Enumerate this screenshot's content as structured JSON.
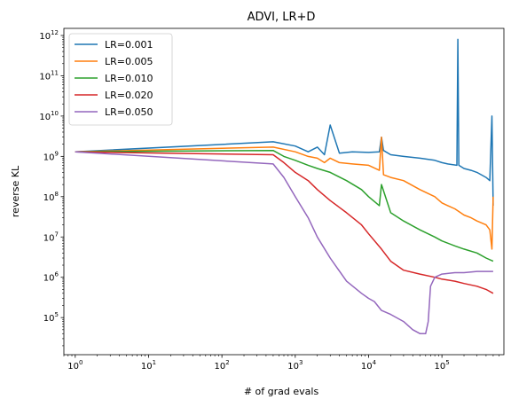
{
  "chart_data": {
    "type": "line",
    "title": "ADVI, LR+D",
    "xlabel": "# of grad evals",
    "ylabel": "reverse KL",
    "xscale": "log",
    "yscale": "log",
    "xlim": [
      0.7,
      700000
    ],
    "ylim": [
      12000,
      1500000000000
    ],
    "xticks": [
      {
        "base": "10",
        "exp": "0",
        "value": 1
      },
      {
        "base": "10",
        "exp": "1",
        "value": 10
      },
      {
        "base": "10",
        "exp": "2",
        "value": 100
      },
      {
        "base": "10",
        "exp": "3",
        "value": 1000
      },
      {
        "base": "10",
        "exp": "4",
        "value": 10000
      },
      {
        "base": "10",
        "exp": "5",
        "value": 100000
      }
    ],
    "yticks": [
      {
        "base": "10",
        "exp": "5",
        "value": 100000
      },
      {
        "base": "10",
        "exp": "6",
        "value": 1000000
      },
      {
        "base": "10",
        "exp": "7",
        "value": 10000000
      },
      {
        "base": "10",
        "exp": "8",
        "value": 100000000
      },
      {
        "base": "10",
        "exp": "9",
        "value": 1000000000
      },
      {
        "base": "10",
        "exp": "10",
        "value": 10000000000
      },
      {
        "base": "10",
        "exp": "11",
        "value": 100000000000
      },
      {
        "base": "10",
        "exp": "12",
        "value": 1000000000000
      }
    ],
    "grid": false,
    "legend_position": "upper-left",
    "series": [
      {
        "name": "LR=0.001",
        "color": "#1f77b4",
        "x": [
          1,
          500,
          1000,
          1500,
          2000,
          2500,
          3000,
          4000,
          6000,
          10000,
          14000,
          15000,
          16000,
          20000,
          30000,
          50000,
          80000,
          100000,
          120000,
          160000,
          165000,
          170000,
          200000,
          250000,
          300000,
          400000,
          450000,
          480000,
          500000
        ],
        "y": [
          1300000000,
          2300000000,
          1800000000,
          1300000000,
          1700000000,
          1100000000,
          6000000000,
          1200000000,
          1300000000,
          1250000000,
          1300000000,
          3000000000,
          1400000000,
          1100000000,
          1000000000,
          900000000,
          800000000,
          700000000,
          650000000,
          600000000,
          800000000000,
          600000000,
          500000000,
          450000000,
          400000000,
          300000000,
          250000000,
          10000000000,
          60000000
        ]
      },
      {
        "name": "LR=0.005",
        "color": "#ff7f0e",
        "x": [
          1,
          500,
          1000,
          1500,
          2000,
          2500,
          3000,
          4000,
          6000,
          10000,
          14000,
          15000,
          16000,
          20000,
          30000,
          50000,
          80000,
          100000,
          120000,
          150000,
          180000,
          200000,
          250000,
          300000,
          400000,
          450000,
          480000,
          500000
        ],
        "y": [
          1300000000,
          1700000000,
          1300000000,
          1000000000,
          900000000,
          700000000,
          900000000,
          700000000,
          650000000,
          600000000,
          450000000,
          3000000000,
          350000000,
          300000000,
          250000000,
          150000000,
          100000000,
          70000000,
          60000000,
          50000000,
          40000000,
          35000000,
          30000000,
          25000000,
          20000000,
          15000000,
          5000000,
          100000000
        ]
      },
      {
        "name": "LR=0.010",
        "color": "#2ca02c",
        "x": [
          1,
          500,
          700,
          1000,
          1500,
          2000,
          3000,
          5000,
          8000,
          10000,
          14000,
          15000,
          20000,
          30000,
          50000,
          80000,
          100000,
          150000,
          200000,
          300000,
          400000,
          500000
        ],
        "y": [
          1300000000,
          1400000000,
          1000000000,
          800000000,
          600000000,
          500000000,
          400000000,
          250000000,
          150000000,
          100000000,
          60000000,
          200000000,
          40000000,
          25000000,
          15000000,
          10000000,
          8000000,
          6000000,
          5000000,
          4000000,
          3000000,
          2500000
        ]
      },
      {
        "name": "LR=0.020",
        "color": "#d62728",
        "x": [
          1,
          500,
          700,
          1000,
          1500,
          2000,
          3000,
          5000,
          8000,
          10000,
          15000,
          20000,
          30000,
          50000,
          80000,
          100000,
          150000,
          200000,
          300000,
          400000,
          500000
        ],
        "y": [
          1300000000,
          1100000000,
          700000000,
          400000000,
          250000000,
          150000000,
          80000000,
          40000000,
          20000000,
          12000000,
          5000000,
          2500000,
          1500000,
          1200000,
          1000000,
          900000,
          800000,
          700000,
          600000,
          500000,
          400000
        ]
      },
      {
        "name": "LR=0.050",
        "color": "#9467bd",
        "x": [
          1,
          500,
          700,
          1000,
          1500,
          2000,
          3000,
          5000,
          8000,
          10000,
          12000,
          15000,
          20000,
          30000,
          40000,
          50000,
          60000,
          65000,
          70000,
          80000,
          100000,
          150000,
          200000,
          300000,
          400000,
          500000
        ],
        "y": [
          1300000000,
          650000000,
          300000000,
          100000000,
          30000000,
          10000000,
          3000000,
          800000,
          400000,
          300000,
          250000,
          150000,
          120000,
          80000,
          50000,
          40000,
          40000,
          80000,
          600000,
          1000000,
          1200000,
          1300000,
          1300000,
          1400000,
          1400000,
          1400000
        ]
      }
    ]
  }
}
